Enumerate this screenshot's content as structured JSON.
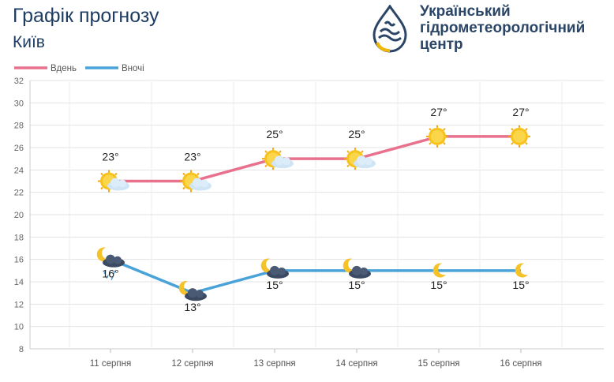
{
  "header": {
    "title": "Графік прогнозу",
    "city": "Київ"
  },
  "organization": {
    "line1": "Український",
    "line2": "гідрометеорологічний",
    "line3": "центр",
    "logo_icon": "water-drop-logo-icon",
    "logo_colors": [
      "#2a4566",
      "#f2b705"
    ]
  },
  "chart_data": {
    "type": "line",
    "categories": [
      "11 серпня",
      "12 серпня",
      "13 серпня",
      "14 серпня",
      "15 серпня",
      "16 серпня"
    ],
    "series": [
      {
        "name": "Вдень",
        "color": "#e8728d",
        "values": [
          23,
          23,
          25,
          25,
          27,
          27
        ],
        "labels": [
          "23°",
          "23°",
          "25°",
          "25°",
          "27°",
          "27°"
        ],
        "icons": [
          "sun-cloud-icon",
          "sun-cloud-icon",
          "sun-cloud-icon",
          "sun-cloud-icon",
          "sun-icon",
          "sun-icon"
        ]
      },
      {
        "name": "Вночі",
        "color": "#4aa3d8",
        "values": [
          16,
          13,
          15,
          15,
          15,
          15
        ],
        "labels": [
          "16°",
          "13°",
          "15°",
          "15°",
          "15°",
          "15°"
        ],
        "icons": [
          "moon-rain-cloud-icon",
          "moon-cloud-icon",
          "moon-cloud-icon",
          "moon-cloud-icon",
          "moon-icon",
          "moon-icon"
        ]
      }
    ],
    "ylim": [
      8,
      32
    ],
    "yticks": [
      "8",
      "10",
      "12",
      "14",
      "16",
      "18",
      "20",
      "22",
      "24",
      "26",
      "28",
      "30",
      "32"
    ],
    "grid": true,
    "legend": "top-left"
  }
}
